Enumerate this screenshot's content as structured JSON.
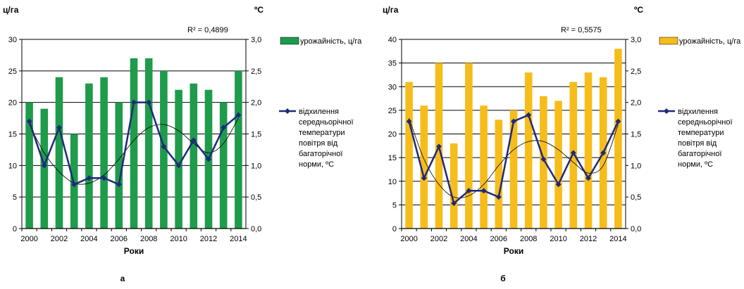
{
  "chart_data": [
    {
      "type": "bar",
      "id": "a",
      "caption": "а",
      "left_unit": "ц/га",
      "right_unit": "ºС",
      "xlabel": "Роки",
      "r2": "R² = 0,4899",
      "x": [
        2000,
        2001,
        2002,
        2003,
        2004,
        2005,
        2006,
        2007,
        2008,
        2009,
        2010,
        2011,
        2012,
        2013,
        2014
      ],
      "x_ticks": [
        "2000",
        "2002",
        "2004",
        "2006",
        "2008",
        "2010",
        "2012",
        "2014"
      ],
      "ylim": [
        0,
        30
      ],
      "y_ticks": [
        "0",
        "5",
        "10",
        "15",
        "20",
        "25",
        "30"
      ],
      "y2lim": [
        0,
        3
      ],
      "y2_ticks": [
        "0,0",
        "0,5",
        "1,0",
        "1,5",
        "2,0",
        "2,5",
        "3,0"
      ],
      "grid": true,
      "legend_position": "right",
      "series": [
        {
          "name": "урожайність, ц/га",
          "kind": "bar",
          "axis": "left",
          "color": "#1e9b4b",
          "values": [
            20,
            19,
            24,
            15,
            23,
            24,
            20,
            27,
            27,
            25,
            22,
            23,
            22,
            20,
            25
          ]
        },
        {
          "name": "відхилення середньорічної температури повітря від багаторічної норми, ºС",
          "kind": "line",
          "axis": "right",
          "color": "#1f2a7a",
          "values": [
            1.7,
            1.0,
            1.6,
            0.7,
            0.8,
            0.8,
            0.7,
            2.0,
            2.0,
            1.3,
            1.0,
            1.4,
            1.1,
            1.6,
            1.8
          ]
        },
        {
          "name": "",
          "kind": "trend",
          "axis": "right",
          "color": "#000000",
          "values": [
            1.65,
            1.2,
            0.9,
            0.72,
            0.72,
            0.85,
            1.1,
            1.4,
            1.6,
            1.65,
            1.55,
            1.35,
            1.2,
            1.35,
            1.75
          ]
        }
      ]
    },
    {
      "type": "bar",
      "id": "b",
      "caption": "б",
      "left_unit": "ц/га",
      "right_unit": "ºС",
      "xlabel": "Роки",
      "r2": "R² = 0,5575",
      "x": [
        2000,
        2001,
        2002,
        2003,
        2004,
        2005,
        2006,
        2007,
        2008,
        2009,
        2010,
        2011,
        2012,
        2013,
        2014
      ],
      "x_ticks": [
        "2000",
        "2002",
        "2004",
        "2006",
        "2008",
        "2010",
        "2012",
        "2014"
      ],
      "ylim": [
        0,
        40
      ],
      "y_ticks": [
        "0",
        "5",
        "10",
        "15",
        "20",
        "25",
        "30",
        "35",
        "40"
      ],
      "y2lim": [
        0,
        3
      ],
      "y2_ticks": [
        "0,0",
        "0,5",
        "1,0",
        "1,5",
        "2,0",
        "2,5",
        "3,0"
      ],
      "grid": true,
      "legend_position": "right",
      "series": [
        {
          "name": "урожайність, ц/га",
          "kind": "bar",
          "axis": "left",
          "color": "#f6bd1a",
          "values": [
            31,
            26,
            35,
            18,
            35,
            26,
            23,
            25,
            33,
            28,
            27,
            31,
            33,
            32,
            38
          ]
        },
        {
          "name": "відхилення середньорічної температури повітря від багаторічної норми, ºС",
          "kind": "line",
          "axis": "right",
          "color": "#1f2a7a",
          "values": [
            1.7,
            0.8,
            1.3,
            0.4,
            0.6,
            0.6,
            0.5,
            1.7,
            1.8,
            1.1,
            0.7,
            1.2,
            0.8,
            1.2,
            1.7
          ]
        },
        {
          "name": "",
          "kind": "trend",
          "axis": "right",
          "color": "#000000",
          "values": [
            1.75,
            1.1,
            0.7,
            0.5,
            0.52,
            0.7,
            1.0,
            1.25,
            1.38,
            1.38,
            1.25,
            1.05,
            0.88,
            1.0,
            1.65
          ]
        }
      ]
    }
  ]
}
